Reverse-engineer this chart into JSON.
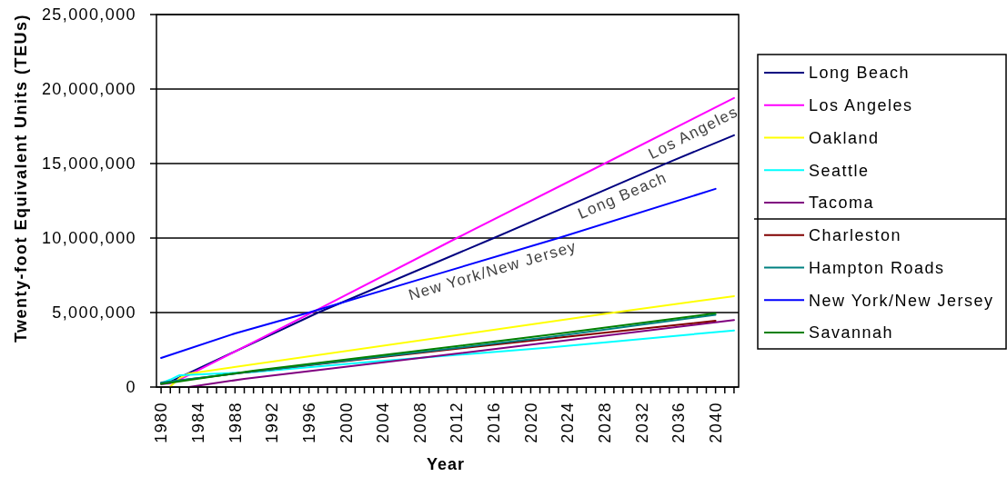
{
  "chart_data": {
    "type": "line",
    "xlabel": "Year",
    "ylabel": "Twenty-foot Equivalent Units (TEUs)",
    "xlim": [
      1979.5,
      2042.5
    ],
    "xticks": [
      1980,
      {
        "value": 1981,
        "label": null
      },
      {
        "value": 1982,
        "label": null
      },
      {
        "value": 1983,
        "label": null
      },
      1984,
      {
        "value": 1985,
        "label": null
      },
      {
        "value": 1986,
        "label": null
      },
      {
        "value": 1987,
        "label": null
      },
      1988,
      {
        "value": 1989,
        "label": null
      },
      {
        "value": 1990,
        "label": null
      },
      {
        "value": 1991,
        "label": null
      },
      1992,
      {
        "value": 1993,
        "label": null
      },
      {
        "value": 1994,
        "label": null
      },
      {
        "value": 1995,
        "label": null
      },
      1996,
      {
        "value": 1997,
        "label": null
      },
      {
        "value": 1998,
        "label": null
      },
      {
        "value": 1999,
        "label": null
      },
      2000,
      {
        "value": 2001,
        "label": null
      },
      {
        "value": 2002,
        "label": null
      },
      {
        "value": 2003,
        "label": null
      },
      2004,
      {
        "value": 2005,
        "label": null
      },
      {
        "value": 2006,
        "label": null
      },
      {
        "value": 2007,
        "label": null
      },
      2008,
      {
        "value": 2009,
        "label": null
      },
      {
        "value": 2010,
        "label": null
      },
      {
        "value": 2011,
        "label": null
      },
      2012,
      {
        "value": 2013,
        "label": null
      },
      {
        "value": 2014,
        "label": null
      },
      {
        "value": 2015,
        "label": null
      },
      2016,
      {
        "value": 2017,
        "label": null
      },
      {
        "value": 2018,
        "label": null
      },
      {
        "value": 2019,
        "label": null
      },
      2020,
      {
        "value": 2021,
        "label": null
      },
      {
        "value": 2022,
        "label": null
      },
      {
        "value": 2023,
        "label": null
      },
      2024,
      {
        "value": 2025,
        "label": null
      },
      {
        "value": 2026,
        "label": null
      },
      {
        "value": 2027,
        "label": null
      },
      2028,
      {
        "value": 2029,
        "label": null
      },
      {
        "value": 2030,
        "label": null
      },
      {
        "value": 2031,
        "label": null
      },
      2032,
      {
        "value": 2033,
        "label": null
      },
      {
        "value": 2034,
        "label": null
      },
      {
        "value": 2035,
        "label": null
      },
      2036,
      {
        "value": 2037,
        "label": null
      },
      {
        "value": 2038,
        "label": null
      },
      {
        "value": 2039,
        "label": null
      },
      2040,
      {
        "value": 2041,
        "label": null
      },
      {
        "value": 2042,
        "label": null
      }
    ],
    "ylim": [
      0,
      25000000
    ],
    "yticks": [
      0,
      {
        "value": 5000000,
        "label": "5,000,000"
      },
      {
        "value": 10000000,
        "label": "10,000,000"
      },
      {
        "value": 15000000,
        "label": "15,000,000"
      },
      {
        "value": 20000000,
        "label": "20,000,000"
      },
      {
        "value": 25000000,
        "label": "25,000,000"
      }
    ],
    "grid": "y",
    "legend": "right",
    "series": [
      {
        "name": "Long Beach",
        "color": "#000080",
        "x": [
          1980,
          1981,
          1982,
          1997,
          2016,
          2035,
          2042
        ],
        "values": [
          250000,
          350000,
          650000,
          5000000,
          10000000,
          15100000,
          16900000
        ]
      },
      {
        "name": "Los Angeles",
        "color": "#ff00ff",
        "x": [
          1980,
          1981,
          1982,
          1996,
          2012,
          2028,
          2042
        ],
        "values": [
          200000,
          250000,
          500000,
          4900000,
          10000000,
          15000000,
          19400000
        ]
      },
      {
        "name": "Oakland",
        "color": "#ffff00",
        "x": [
          1981,
          1982,
          1983,
          2029,
          2042
        ],
        "values": [
          50000,
          600000,
          900000,
          5000000,
          6100000
        ]
      },
      {
        "name": "Seattle",
        "color": "#00ffff",
        "x": [
          1980,
          1981,
          1982,
          1990,
          2003,
          2022,
          2042
        ],
        "values": [
          250000,
          500000,
          800000,
          1000000,
          1700000,
          2650000,
          3800000
        ]
      },
      {
        "name": "Tacoma",
        "color": "#800080",
        "x": [
          1983,
          1989,
          2008,
          2042
        ],
        "values": [
          0,
          550000,
          1950000,
          4500000
        ]
      },
      {
        "name": "Charleston",
        "color": "#800000",
        "x": [
          1980,
          1982,
          1990,
          2022,
          2040
        ],
        "values": [
          250000,
          450000,
          1050000,
          3250000,
          4450000
        ]
      },
      {
        "name": "Hampton Roads",
        "color": "#008080",
        "x": [
          1980,
          1990,
          2022,
          2040
        ],
        "values": [
          300000,
          1050000,
          3350000,
          4850000
        ]
      },
      {
        "name": "New York/New Jersey",
        "color": "#0000ff",
        "x": [
          1980,
          1988,
          1996,
          2010,
          2023,
          2040
        ],
        "values": [
          1950000,
          3600000,
          5000000,
          7600000,
          10000000,
          13300000
        ]
      },
      {
        "name": "Savannah",
        "color": "#008000",
        "x": [
          1980,
          1990,
          2022,
          2040
        ],
        "values": [
          200000,
          1100000,
          3500000,
          4950000
        ]
      }
    ],
    "annotations": [
      {
        "text": "Los Angeles",
        "x": 2037,
        "y": 17800000
      },
      {
        "text": "Long Beach",
        "x": 2029.4,
        "y": 13600000
      },
      {
        "text": "New York/New Jersey",
        "x": 2015.5,
        "y": 8600000
      }
    ]
  }
}
